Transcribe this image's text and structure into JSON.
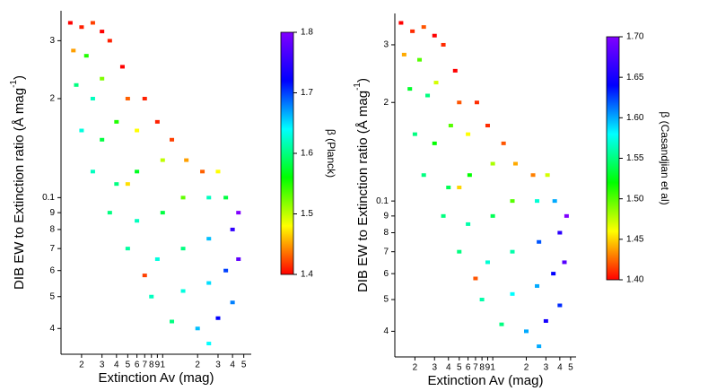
{
  "chart_data": [
    {
      "type": "scatter",
      "log_x": true,
      "log_y": true,
      "xlabel": "Extinction Av (mag)",
      "ylabel": "DIB EW to Extinction ratio (Å mag",
      "ylabel_sup": "-1",
      "ylabel_end": ")",
      "xlim": [
        0.133,
        5.8
      ],
      "ylim": [
        0.0334,
        0.37
      ],
      "xticks": [
        {
          "value": 0.2,
          "label": "2"
        },
        {
          "value": 0.3,
          "label": "3"
        },
        {
          "value": 0.4,
          "label": "4"
        },
        {
          "value": 0.5,
          "label": "5"
        },
        {
          "value": 0.6,
          "label": "6"
        },
        {
          "value": 0.7,
          "label": "7"
        },
        {
          "value": 0.8,
          "label": "8"
        },
        {
          "value": 0.9,
          "label": "9"
        },
        1,
        2,
        3,
        4,
        5
      ],
      "yticks": [
        {
          "value": 0.04,
          "label": "4"
        },
        {
          "value": 0.05,
          "label": "5"
        },
        {
          "value": 0.06,
          "label": "6"
        },
        {
          "value": 0.07,
          "label": "7"
        },
        {
          "value": 0.08,
          "label": "8"
        },
        {
          "value": 0.09,
          "label": "9"
        },
        0.1,
        {
          "value": 0.2,
          "label": "2"
        },
        {
          "value": 0.3,
          "label": "3"
        }
      ],
      "x": [
        0.16,
        0.2,
        0.25,
        0.3,
        0.17,
        0.22,
        0.35,
        0.45,
        0.18,
        0.25,
        0.3,
        0.5,
        0.7,
        0.2,
        0.3,
        0.4,
        0.6,
        0.9,
        1.2,
        0.25,
        0.4,
        0.6,
        1.0,
        1.6,
        2.2,
        0.35,
        0.6,
        1.0,
        1.5,
        2.5,
        3.5,
        0.5,
        0.9,
        1.5,
        2.5,
        4.0,
        4.5,
        0.8,
        1.5,
        2.5,
        3.5,
        4.5,
        1.2,
        2.0,
        3.0,
        4.0,
        2.5,
        0.7,
        0.5,
        3.0
      ],
      "y": [
        0.34,
        0.33,
        0.34,
        0.32,
        0.28,
        0.27,
        0.3,
        0.25,
        0.22,
        0.2,
        0.23,
        0.2,
        0.2,
        0.16,
        0.15,
        0.17,
        0.16,
        0.17,
        0.15,
        0.12,
        0.11,
        0.12,
        0.13,
        0.13,
        0.12,
        0.09,
        0.085,
        0.09,
        0.1,
        0.1,
        0.1,
        0.07,
        0.065,
        0.07,
        0.075,
        0.08,
        0.09,
        0.05,
        0.052,
        0.055,
        0.06,
        0.065,
        0.042,
        0.04,
        0.043,
        0.048,
        0.036,
        0.058,
        0.11,
        0.12
      ],
      "c": [
        1.4,
        1.41,
        1.42,
        1.4,
        1.45,
        1.55,
        1.41,
        1.4,
        1.6,
        1.62,
        1.52,
        1.43,
        1.41,
        1.63,
        1.58,
        1.55,
        1.48,
        1.41,
        1.42,
        1.62,
        1.6,
        1.57,
        1.5,
        1.45,
        1.43,
        1.6,
        1.62,
        1.58,
        1.53,
        1.62,
        1.58,
        1.61,
        1.63,
        1.6,
        1.66,
        1.75,
        1.8,
        1.62,
        1.63,
        1.65,
        1.7,
        1.78,
        1.6,
        1.66,
        1.72,
        1.68,
        1.64,
        1.42,
        1.47,
        1.48
      ],
      "colorbar": {
        "label": "β (Planck)",
        "lim": [
          1.4,
          1.8
        ],
        "ticks": [
          1.4,
          1.5,
          1.6,
          1.7,
          1.8
        ],
        "colormap": [
          "#ff0000",
          "#ffff00",
          "#00ff00",
          "#00ffff",
          "#0000ff",
          "#8000ff"
        ]
      }
    },
    {
      "type": "scatter",
      "log_x": true,
      "log_y": true,
      "xlabel": "Extinction Av (mag)",
      "ylabel": "DIB EW to Extinction ratio (Å mag",
      "ylabel_sup": "-1",
      "ylabel_end": ")",
      "xlim": [
        0.132,
        5.6
      ],
      "ylim": [
        0.0334,
        0.374
      ],
      "xticks": [
        {
          "value": 0.2,
          "label": "2"
        },
        {
          "value": 0.3,
          "label": "3"
        },
        {
          "value": 0.4,
          "label": "4"
        },
        {
          "value": 0.5,
          "label": "5"
        },
        {
          "value": 0.6,
          "label": "6"
        },
        {
          "value": 0.7,
          "label": "7"
        },
        {
          "value": 0.8,
          "label": "8"
        },
        {
          "value": 0.9,
          "label": "9"
        },
        1,
        2,
        3,
        4,
        5
      ],
      "yticks": [
        {
          "value": 0.04,
          "label": "4"
        },
        {
          "value": 0.05,
          "label": "5"
        },
        {
          "value": 0.06,
          "label": "6"
        },
        {
          "value": 0.07,
          "label": "7"
        },
        {
          "value": 0.08,
          "label": "8"
        },
        {
          "value": 0.09,
          "label": "9"
        },
        0.1,
        {
          "value": 0.2,
          "label": "2"
        },
        {
          "value": 0.3,
          "label": "3"
        }
      ],
      "x": [
        0.15,
        0.19,
        0.24,
        0.3,
        0.16,
        0.22,
        0.36,
        0.46,
        0.18,
        0.26,
        0.31,
        0.5,
        0.72,
        0.2,
        0.3,
        0.42,
        0.6,
        0.9,
        1.25,
        0.24,
        0.4,
        0.62,
        1.0,
        1.6,
        2.3,
        0.36,
        0.6,
        1.0,
        1.5,
        2.5,
        3.6,
        0.5,
        0.9,
        1.5,
        2.6,
        4.0,
        4.6,
        0.8,
        1.5,
        2.5,
        3.5,
        4.4,
        1.2,
        2.0,
        3.0,
        4.0,
        2.6,
        0.7,
        0.5,
        3.1
      ],
      "y": [
        0.35,
        0.33,
        0.34,
        0.32,
        0.28,
        0.27,
        0.3,
        0.25,
        0.22,
        0.21,
        0.23,
        0.2,
        0.2,
        0.16,
        0.15,
        0.17,
        0.16,
        0.17,
        0.15,
        0.12,
        0.11,
        0.12,
        0.13,
        0.13,
        0.12,
        0.09,
        0.085,
        0.09,
        0.1,
        0.1,
        0.1,
        0.07,
        0.065,
        0.07,
        0.075,
        0.08,
        0.09,
        0.05,
        0.052,
        0.055,
        0.06,
        0.065,
        0.042,
        0.04,
        0.043,
        0.048,
        0.036,
        0.058,
        0.11,
        0.12
      ],
      "c": [
        1.4,
        1.41,
        1.42,
        1.4,
        1.44,
        1.5,
        1.41,
        1.4,
        1.53,
        1.55,
        1.47,
        1.42,
        1.41,
        1.55,
        1.52,
        1.5,
        1.46,
        1.41,
        1.42,
        1.55,
        1.54,
        1.52,
        1.48,
        1.44,
        1.43,
        1.55,
        1.56,
        1.54,
        1.5,
        1.57,
        1.6,
        1.55,
        1.57,
        1.56,
        1.62,
        1.66,
        1.7,
        1.56,
        1.58,
        1.6,
        1.64,
        1.68,
        1.55,
        1.6,
        1.65,
        1.63,
        1.6,
        1.42,
        1.45,
        1.47
      ],
      "colorbar": {
        "label": "β (Casandjian et al)",
        "lim": [
          1.4,
          1.7
        ],
        "ticks": [
          {
            "value": 1.4,
            "label": "1.40"
          },
          1.45,
          {
            "value": 1.5,
            "label": "1.50"
          },
          1.55,
          {
            "value": 1.6,
            "label": "1.60"
          },
          1.65,
          {
            "value": 1.7,
            "label": "1.70"
          }
        ],
        "colormap": [
          "#ff0000",
          "#ffff00",
          "#00ff00",
          "#00ffff",
          "#0000ff",
          "#8000ff"
        ]
      }
    }
  ]
}
